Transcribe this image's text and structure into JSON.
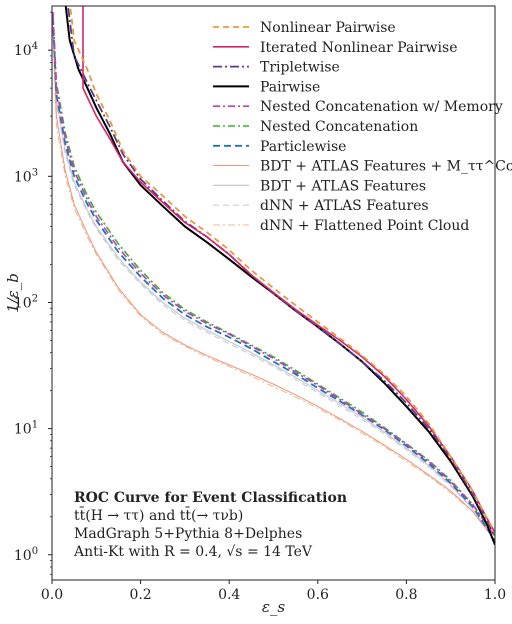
{
  "chart_data": {
    "type": "line",
    "xlabel": "ε_s",
    "ylabel": "1/ε_b",
    "xlim": [
      0,
      1
    ],
    "ylim_log10": [
      -0.2,
      4.35
    ],
    "y_scale": "log",
    "x_ticks": [
      "0.0",
      "0.2",
      "0.4",
      "0.6",
      "0.8",
      "1.0"
    ],
    "y_ticks": [
      {
        "base": "10",
        "exp": "0",
        "log": 0
      },
      {
        "base": "10",
        "exp": "1",
        "log": 1
      },
      {
        "base": "10",
        "exp": "2",
        "log": 2
      },
      {
        "base": "10",
        "exp": "3",
        "log": 3
      },
      {
        "base": "10",
        "exp": "4",
        "log": 4
      }
    ],
    "legend_position": "top-right",
    "annotations": {
      "title": "ROC Curve for Event Classification",
      "line1": "tt̄(H → ττ) and tt̄(→ τνb)",
      "line2": "MadGraph 5+Pythia 8+Delphes",
      "line3": "Anti-Kt with R = 0.4, √s = 14 TeV"
    },
    "series": [
      {
        "name": "Nonlinear Pairwise",
        "color": "#e69a3c",
        "dash": "6,4",
        "width": 1.8,
        "points": [
          [
            0.01,
            24000
          ],
          [
            0.04,
            24000
          ],
          [
            0.05,
            12000
          ],
          [
            0.08,
            7000
          ],
          [
            0.1,
            4500
          ],
          [
            0.13,
            2800
          ],
          [
            0.16,
            1600
          ],
          [
            0.2,
            1000
          ],
          [
            0.25,
            700
          ],
          [
            0.3,
            480
          ],
          [
            0.35,
            360
          ],
          [
            0.4,
            260
          ],
          [
            0.45,
            180
          ],
          [
            0.5,
            130
          ],
          [
            0.55,
            95
          ],
          [
            0.6,
            70
          ],
          [
            0.65,
            52
          ],
          [
            0.7,
            38
          ],
          [
            0.75,
            27
          ],
          [
            0.8,
            18
          ],
          [
            0.85,
            11
          ],
          [
            0.9,
            6
          ],
          [
            0.95,
            3.2
          ],
          [
            0.98,
            2.0
          ],
          [
            1.0,
            1.5
          ]
        ]
      },
      {
        "name": "Iterated Nonlinear Pairwise",
        "color": "#d6246e",
        "dash": "",
        "width": 1.6,
        "points": [
          [
            0.01,
            24000
          ],
          [
            0.07,
            24000
          ],
          [
            0.07,
            5000
          ],
          [
            0.1,
            3000
          ],
          [
            0.13,
            2000
          ],
          [
            0.16,
            1300
          ],
          [
            0.2,
            900
          ],
          [
            0.25,
            620
          ],
          [
            0.3,
            430
          ],
          [
            0.35,
            330
          ],
          [
            0.4,
            240
          ],
          [
            0.45,
            165
          ],
          [
            0.5,
            120
          ],
          [
            0.55,
            88
          ],
          [
            0.6,
            66
          ],
          [
            0.65,
            50
          ],
          [
            0.7,
            37
          ],
          [
            0.75,
            26
          ],
          [
            0.8,
            17
          ],
          [
            0.85,
            10.5
          ],
          [
            0.9,
            6
          ],
          [
            0.95,
            3.2
          ],
          [
            0.98,
            2.0
          ],
          [
            1.0,
            1.5
          ]
        ]
      },
      {
        "name": "Tripletwise",
        "color": "#5a3a86",
        "dash": "9,3,2,3",
        "width": 1.8,
        "points": [
          [
            0.01,
            24000
          ],
          [
            0.035,
            24000
          ],
          [
            0.05,
            9000
          ],
          [
            0.08,
            5500
          ],
          [
            0.1,
            4000
          ],
          [
            0.13,
            2500
          ],
          [
            0.16,
            1500
          ],
          [
            0.2,
            950
          ],
          [
            0.25,
            640
          ],
          [
            0.3,
            440
          ],
          [
            0.35,
            330
          ],
          [
            0.4,
            240
          ],
          [
            0.45,
            165
          ],
          [
            0.5,
            118
          ],
          [
            0.55,
            86
          ],
          [
            0.6,
            64
          ],
          [
            0.65,
            47
          ],
          [
            0.7,
            34
          ],
          [
            0.75,
            24
          ],
          [
            0.8,
            16
          ],
          [
            0.85,
            10
          ],
          [
            0.9,
            5.8
          ],
          [
            0.95,
            3.0
          ],
          [
            0.98,
            1.9
          ],
          [
            1.0,
            1.4
          ]
        ]
      },
      {
        "name": "Pairwise",
        "color": "#000000",
        "dash": "",
        "width": 2.0,
        "points": [
          [
            0.01,
            24000
          ],
          [
            0.03,
            24000
          ],
          [
            0.04,
            12000
          ],
          [
            0.06,
            7000
          ],
          [
            0.08,
            5000
          ],
          [
            0.1,
            3500
          ],
          [
            0.13,
            2200
          ],
          [
            0.16,
            1300
          ],
          [
            0.2,
            850
          ],
          [
            0.25,
            580
          ],
          [
            0.3,
            400
          ],
          [
            0.35,
            300
          ],
          [
            0.4,
            220
          ],
          [
            0.45,
            160
          ],
          [
            0.5,
            118
          ],
          [
            0.55,
            86
          ],
          [
            0.6,
            64
          ],
          [
            0.65,
            47
          ],
          [
            0.7,
            34
          ],
          [
            0.75,
            23
          ],
          [
            0.8,
            15
          ],
          [
            0.85,
            9.5
          ],
          [
            0.9,
            5.5
          ],
          [
            0.95,
            2.9
          ],
          [
            0.98,
            1.8
          ],
          [
            1.0,
            1.2
          ]
        ]
      },
      {
        "name": "Nested Concatenation w/ Memory",
        "color": "#c03cc0",
        "dash": "7,3,2,3",
        "width": 1.6,
        "points": [
          [
            0.002,
            20000
          ],
          [
            0.01,
            5000
          ],
          [
            0.03,
            2000
          ],
          [
            0.05,
            1100
          ],
          [
            0.08,
            650
          ],
          [
            0.1,
            480
          ],
          [
            0.15,
            270
          ],
          [
            0.2,
            170
          ],
          [
            0.25,
            115
          ],
          [
            0.3,
            85
          ],
          [
            0.35,
            68
          ],
          [
            0.4,
            56
          ],
          [
            0.45,
            45
          ],
          [
            0.5,
            36
          ],
          [
            0.55,
            28
          ],
          [
            0.6,
            22
          ],
          [
            0.65,
            17
          ],
          [
            0.7,
            13
          ],
          [
            0.75,
            10
          ],
          [
            0.8,
            7.5
          ],
          [
            0.85,
            5.5
          ],
          [
            0.9,
            3.8
          ],
          [
            0.95,
            2.5
          ],
          [
            1.0,
            1.4
          ]
        ]
      },
      {
        "name": "Nested Concatenation",
        "color": "#3cb028",
        "dash": "7,3,2,3",
        "width": 1.6,
        "points": [
          [
            0.002,
            20000
          ],
          [
            0.01,
            5500
          ],
          [
            0.03,
            2200
          ],
          [
            0.05,
            1200
          ],
          [
            0.08,
            700
          ],
          [
            0.1,
            520
          ],
          [
            0.15,
            290
          ],
          [
            0.2,
            180
          ],
          [
            0.25,
            120
          ],
          [
            0.3,
            88
          ],
          [
            0.35,
            70
          ],
          [
            0.4,
            57
          ],
          [
            0.45,
            46
          ],
          [
            0.5,
            37
          ],
          [
            0.55,
            29
          ],
          [
            0.6,
            22.5
          ],
          [
            0.65,
            17.5
          ],
          [
            0.7,
            13.5
          ],
          [
            0.75,
            10.2
          ],
          [
            0.8,
            7.6
          ],
          [
            0.85,
            5.6
          ],
          [
            0.9,
            3.9
          ],
          [
            0.95,
            2.5
          ],
          [
            1.0,
            1.4
          ]
        ]
      },
      {
        "name": "Particlewise",
        "color": "#1f72b8",
        "dash": "7,4",
        "width": 1.8,
        "points": [
          [
            0.002,
            18000
          ],
          [
            0.01,
            4500
          ],
          [
            0.03,
            1800
          ],
          [
            0.05,
            1000
          ],
          [
            0.08,
            600
          ],
          [
            0.1,
            450
          ],
          [
            0.15,
            250
          ],
          [
            0.2,
            160
          ],
          [
            0.25,
            108
          ],
          [
            0.3,
            80
          ],
          [
            0.35,
            64
          ],
          [
            0.4,
            53
          ],
          [
            0.45,
            43
          ],
          [
            0.5,
            34
          ],
          [
            0.55,
            27
          ],
          [
            0.6,
            21
          ],
          [
            0.65,
            16.5
          ],
          [
            0.7,
            12.8
          ],
          [
            0.75,
            9.8
          ],
          [
            0.8,
            7.3
          ],
          [
            0.85,
            5.3
          ],
          [
            0.9,
            3.7
          ],
          [
            0.95,
            2.4
          ],
          [
            1.0,
            1.3
          ]
        ]
      },
      {
        "name": "BDT + ATLAS Features + M_ττ^Coll",
        "color": "#f0876a",
        "dash": "",
        "width": 0.9,
        "points": [
          [
            0.002,
            16000
          ],
          [
            0.01,
            3000
          ],
          [
            0.03,
            1100
          ],
          [
            0.05,
            600
          ],
          [
            0.08,
            350
          ],
          [
            0.1,
            250
          ],
          [
            0.15,
            130
          ],
          [
            0.2,
            80
          ],
          [
            0.25,
            58
          ],
          [
            0.3,
            46
          ],
          [
            0.35,
            38
          ],
          [
            0.4,
            32
          ],
          [
            0.45,
            27
          ],
          [
            0.5,
            22.5
          ],
          [
            0.55,
            18.5
          ],
          [
            0.6,
            15
          ],
          [
            0.65,
            12
          ],
          [
            0.7,
            9.5
          ],
          [
            0.75,
            7.4
          ],
          [
            0.8,
            5.7
          ],
          [
            0.85,
            4.3
          ],
          [
            0.9,
            3.2
          ],
          [
            0.95,
            2.2
          ],
          [
            1.0,
            1.3
          ]
        ]
      },
      {
        "name": "BDT + ATLAS Features",
        "color": "#c8c8c8",
        "dash": "",
        "width": 1.2,
        "points": [
          [
            0.002,
            15000
          ],
          [
            0.01,
            4000
          ],
          [
            0.03,
            1600
          ],
          [
            0.05,
            900
          ],
          [
            0.08,
            540
          ],
          [
            0.1,
            400
          ],
          [
            0.15,
            225
          ],
          [
            0.2,
            145
          ],
          [
            0.25,
            100
          ],
          [
            0.3,
            75
          ],
          [
            0.35,
            60
          ],
          [
            0.4,
            49
          ],
          [
            0.45,
            40
          ],
          [
            0.5,
            32
          ],
          [
            0.55,
            25.5
          ],
          [
            0.6,
            20
          ],
          [
            0.65,
            15.8
          ],
          [
            0.7,
            12.3
          ],
          [
            0.75,
            9.4
          ],
          [
            0.8,
            7.0
          ],
          [
            0.85,
            5.1
          ],
          [
            0.9,
            3.6
          ],
          [
            0.95,
            2.3
          ],
          [
            1.0,
            1.3
          ]
        ]
      },
      {
        "name": "dNN + ATLAS Features",
        "color": "#c9cde0",
        "dash": "6,4",
        "width": 1.2,
        "points": [
          [
            0.002,
            15000
          ],
          [
            0.01,
            3800
          ],
          [
            0.03,
            1500
          ],
          [
            0.05,
            850
          ],
          [
            0.08,
            520
          ],
          [
            0.1,
            385
          ],
          [
            0.15,
            215
          ],
          [
            0.2,
            140
          ],
          [
            0.25,
            96
          ],
          [
            0.3,
            72
          ],
          [
            0.35,
            58
          ],
          [
            0.4,
            47
          ],
          [
            0.45,
            38.5
          ],
          [
            0.5,
            31
          ],
          [
            0.55,
            24.5
          ],
          [
            0.6,
            19.3
          ],
          [
            0.65,
            15.2
          ],
          [
            0.7,
            11.8
          ],
          [
            0.75,
            9.1
          ],
          [
            0.8,
            6.8
          ],
          [
            0.85,
            5.0
          ],
          [
            0.9,
            3.5
          ],
          [
            0.95,
            2.3
          ],
          [
            1.0,
            1.3
          ]
        ]
      },
      {
        "name": "dNN + Flattened Point Cloud",
        "color": "#f2b98a",
        "dash": "7,3,2,3",
        "width": 1.0,
        "points": [
          [
            0.002,
            14000
          ],
          [
            0.01,
            2500
          ],
          [
            0.03,
            1000
          ],
          [
            0.05,
            560
          ],
          [
            0.08,
            330
          ],
          [
            0.1,
            240
          ],
          [
            0.15,
            125
          ],
          [
            0.2,
            78
          ],
          [
            0.25,
            56
          ],
          [
            0.3,
            45
          ],
          [
            0.35,
            37
          ],
          [
            0.4,
            31
          ],
          [
            0.45,
            26
          ],
          [
            0.5,
            21.5
          ],
          [
            0.55,
            17.8
          ],
          [
            0.6,
            14.5
          ],
          [
            0.65,
            11.7
          ],
          [
            0.7,
            9.2
          ],
          [
            0.75,
            7.2
          ],
          [
            0.8,
            5.5
          ],
          [
            0.85,
            4.2
          ],
          [
            0.9,
            3.1
          ],
          [
            0.95,
            2.2
          ],
          [
            1.0,
            1.3
          ]
        ]
      }
    ]
  }
}
